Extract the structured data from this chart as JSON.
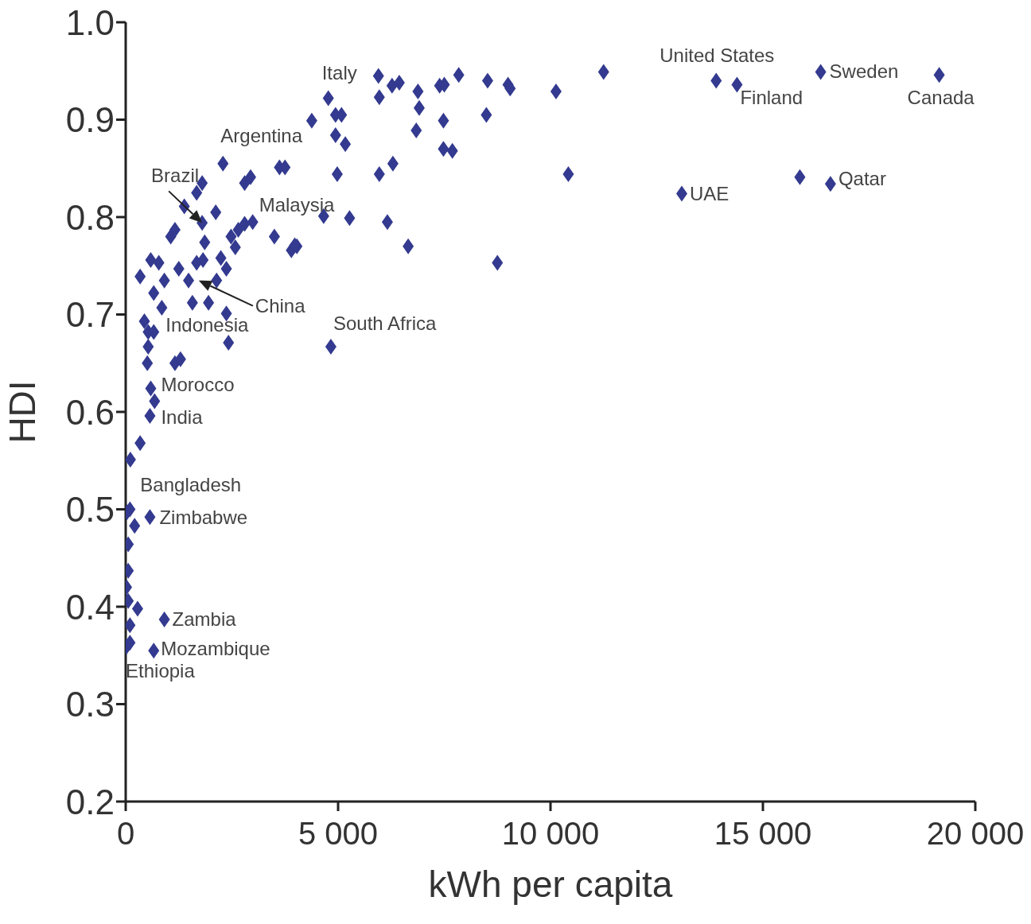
{
  "chart_data": {
    "type": "scatter",
    "xlabel": "kWh per capita",
    "ylabel": "HDI",
    "xlim": [
      0,
      20000
    ],
    "ylim": [
      0.2,
      1.0
    ],
    "xticks": [
      0,
      {
        "value": 5000,
        "label": "5 000"
      },
      {
        "value": 10000,
        "label": "10 000"
      },
      {
        "value": 15000,
        "label": "15 000"
      },
      {
        "value": 20000,
        "label": "20 000"
      }
    ],
    "yticks": [
      {
        "value": 0.2,
        "label": "0.2"
      },
      {
        "value": 0.3,
        "label": "0.3"
      },
      {
        "value": 0.4,
        "label": "0.4"
      },
      {
        "value": 0.5,
        "label": "0.5"
      },
      {
        "value": 0.6,
        "label": "0.6"
      },
      {
        "value": 0.7,
        "label": "0.7"
      },
      {
        "value": 0.8,
        "label": "0.8"
      },
      {
        "value": 0.9,
        "label": "0.9"
      },
      {
        "value": 1.0,
        "label": "1.0"
      }
    ],
    "grid": false,
    "legend": false,
    "marker": "diamond",
    "series": [
      {
        "color": "#333a8f",
        "x": [
          5950,
          6440,
          6270,
          5970,
          6880,
          6910,
          6840,
          7390,
          7500,
          7840,
          8520,
          9000,
          9050,
          10130,
          11250,
          4770,
          4940,
          5080,
          4380,
          4940,
          5170,
          7480,
          8490,
          7480,
          7690,
          4980,
          5970,
          6290,
          10420,
          4660,
          5270,
          6160,
          4030,
          3900,
          6650,
          8750,
          13900,
          14390,
          16360,
          19150,
          13090,
          15870,
          16590,
          2290,
          3620,
          3750,
          1800,
          1670,
          2800,
          2940,
          1380,
          2120,
          1800,
          2800,
          2990,
          2650,
          3500,
          3980,
          2480,
          2580,
          1060,
          1160,
          1860,
          590,
          780,
          1250,
          1670,
          1820,
          2240,
          2370,
          340,
          910,
          1480,
          2140,
          660,
          850,
          1570,
          1950,
          2370,
          440,
          530,
          660,
          530,
          2420,
          4830,
          510,
          1160,
          1290,
          590,
          680,
          570,
          340,
          110,
          100,
          210,
          30,
          570,
          60,
          60,
          20,
          60,
          280,
          910,
          100,
          20,
          100,
          660
        ],
        "values": [
          0.945,
          0.938,
          0.935,
          0.923,
          0.929,
          0.912,
          0.889,
          0.935,
          0.936,
          0.946,
          0.94,
          0.936,
          0.932,
          0.929,
          0.949,
          0.922,
          0.905,
          0.905,
          0.899,
          0.884,
          0.875,
          0.899,
          0.905,
          0.87,
          0.868,
          0.844,
          0.844,
          0.855,
          0.844,
          0.801,
          0.799,
          0.795,
          0.77,
          0.766,
          0.77,
          0.753,
          0.94,
          0.936,
          0.949,
          0.946,
          0.824,
          0.841,
          0.834,
          0.855,
          0.851,
          0.851,
          0.835,
          0.825,
          0.835,
          0.841,
          0.811,
          0.805,
          0.794,
          0.793,
          0.795,
          0.787,
          0.78,
          0.771,
          0.78,
          0.769,
          0.78,
          0.787,
          0.774,
          0.756,
          0.753,
          0.747,
          0.753,
          0.756,
          0.758,
          0.747,
          0.739,
          0.735,
          0.735,
          0.735,
          0.722,
          0.707,
          0.712,
          0.712,
          0.701,
          0.693,
          0.682,
          0.682,
          0.667,
          0.671,
          0.667,
          0.65,
          0.65,
          0.654,
          0.624,
          0.611,
          0.596,
          0.568,
          0.551,
          0.5,
          0.483,
          0.497,
          0.492,
          0.464,
          0.437,
          0.42,
          0.406,
          0.398,
          0.387,
          0.381,
          0.359,
          0.363,
          0.355
        ]
      }
    ],
    "annotations": [
      {
        "text": "Italy",
        "x": 4770,
        "y": 0.922
      },
      {
        "text": "United States",
        "x": 13900,
        "y": 0.94
      },
      {
        "text": "Sweden",
        "x": 16360,
        "y": 0.949
      },
      {
        "text": "Finland",
        "x": 14390,
        "y": 0.936
      },
      {
        "text": "Canada",
        "x": 19150,
        "y": 0.946
      },
      {
        "text": "Argentina",
        "x": 2290,
        "y": 0.855
      },
      {
        "text": "Brazil",
        "x": 1800,
        "y": 0.794
      },
      {
        "text": "Malaysia",
        "x": 2990,
        "y": 0.795
      },
      {
        "text": "Qatar",
        "x": 16590,
        "y": 0.834
      },
      {
        "text": "UAE",
        "x": 13090,
        "y": 0.824
      },
      "China",
      {
        "text": "South Africa",
        "x": 4830,
        "y": 0.667
      },
      {
        "text": "Indonesia",
        "x": 530,
        "y": 0.682
      },
      {
        "text": "Morocco",
        "x": 590,
        "y": 0.624
      },
      {
        "text": "India",
        "x": 570,
        "y": 0.596
      },
      {
        "text": "Bangladesh",
        "x": 100,
        "y": 0.5
      },
      {
        "text": "Zimbabwe",
        "x": 570,
        "y": 0.492
      },
      {
        "text": "Zambia",
        "x": 910,
        "y": 0.387
      },
      {
        "text": "Mozambique",
        "x": 660,
        "y": 0.355
      },
      {
        "text": "Ethiopia",
        "x": 20,
        "y": 0.359
      }
    ]
  }
}
